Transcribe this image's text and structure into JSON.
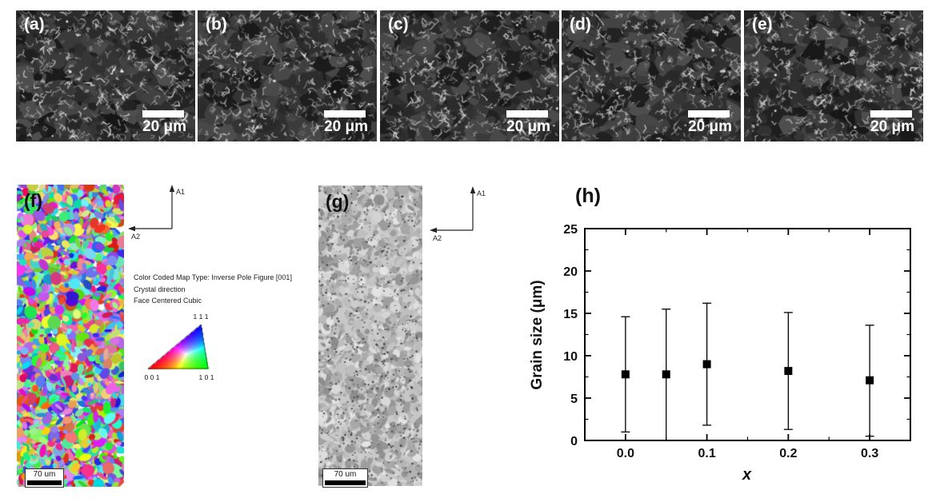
{
  "figure": {
    "sem_row": {
      "panels": [
        {
          "label": "(a)",
          "scalebar": "20 μm"
        },
        {
          "label": "(b)",
          "scalebar": "20 μm"
        },
        {
          "label": "(c)",
          "scalebar": "20 μm"
        },
        {
          "label": "(d)",
          "scalebar": "20 μm"
        },
        {
          "label": "(e)",
          "scalebar": "20 μm"
        }
      ]
    },
    "ipf_map": {
      "label": "(f)",
      "scalebar": "70 um",
      "axes": {
        "vertical": "A1",
        "horizontal": "A2"
      },
      "legend": {
        "line1": "Color Coded Map Type: Inverse Pole Figure [001]",
        "line2": "Crystal direction",
        "line3": "Face Centered Cubic",
        "triangle": {
          "top": "1 1 1",
          "bottom_left": "0 0 1",
          "bottom_right": "1 0 1",
          "corner_colors": {
            "001": "#ff0000",
            "101": "#00ff00",
            "111": "#0000ff"
          }
        }
      }
    },
    "iq_map": {
      "label": "(g)",
      "scalebar": "70 um",
      "axes": {
        "vertical": "A1",
        "horizontal": "A2"
      }
    }
  },
  "chart_data": {
    "type": "scatter",
    "panel_label": "(h)",
    "xlabel": "x",
    "ylabel": "Grain size (μm)",
    "x": [
      0.0,
      0.05,
      0.1,
      0.2,
      0.3
    ],
    "y": [
      7.8,
      7.8,
      9.0,
      8.2,
      7.1
    ],
    "y_upper": [
      14.6,
      15.5,
      16.2,
      15.1,
      13.6
    ],
    "y_lower": [
      1.0,
      0.0,
      1.8,
      1.3,
      0.5
    ],
    "xticks": [
      0.0,
      0.1,
      0.2,
      0.3
    ],
    "xtick_labels": [
      "0.0",
      "0.1",
      "0.2",
      "0.3"
    ],
    "yticks": [
      0,
      5,
      10,
      15,
      20,
      25
    ],
    "ytick_labels": [
      "0",
      "5",
      "10",
      "15",
      "20",
      "25"
    ],
    "x_minor_step": 0.05,
    "y_minor_step": 2.5,
    "xlim": [
      -0.05,
      0.35
    ],
    "ylim": [
      0,
      25
    ],
    "marker": "square",
    "marker_color": "#000000",
    "grid": false
  }
}
